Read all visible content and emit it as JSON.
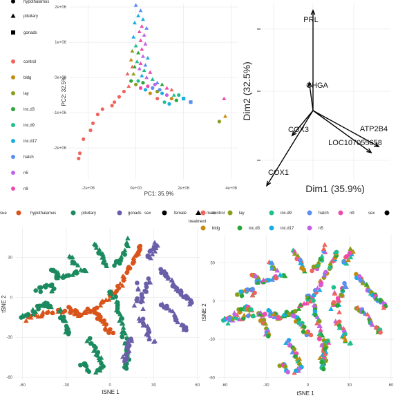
{
  "colors": {
    "hypothalamus": "#d9541a",
    "pituitary": "#1b8a5f",
    "gonads": "#6a5ea9",
    "control": "#f0645e",
    "bldg": "#c58a12",
    "lay": "#8a9c1a",
    "inc.d3": "#2ca53a",
    "inc.d9": "#1fbf8e",
    "inc.d17": "#19aee0",
    "hatch": "#5a8ff0",
    "n5": "#c163e6",
    "n9": "#ef4aae",
    "grid": "#ebebeb"
  },
  "legend_pca": {
    "shape_items": [
      "hypothalamus",
      "pituitary",
      "gonads"
    ],
    "color_items": [
      "control",
      "bldg",
      "lay",
      "inc.d3",
      "inc.d9",
      "inc.d17",
      "hatch",
      "n5",
      "n9"
    ]
  },
  "legend_mid": {
    "tissue_title": "sue",
    "tissue_items": [
      "hypothalamus",
      "pituitary",
      "gonads"
    ],
    "sex_title": "sex",
    "sex_items": [
      "female",
      "male"
    ],
    "treatment_title": "treatment",
    "treatment_row1": [
      "control",
      "lay",
      "inc.d9",
      "hatch",
      "n9"
    ],
    "treatment_row2": [
      "bldg",
      "inc.d3",
      "inc.d17",
      "n5"
    ],
    "sex_title2": "sex"
  },
  "chart_data": [
    {
      "type": "scatter",
      "name_shown": "",
      "xlabel": "PC1: 35.9%",
      "ylabel": "PC2: 32.5%",
      "xlim": [
        -2800000,
        4300000
      ],
      "ylim": [
        -2900000,
        2100000
      ],
      "xticks": [
        -2000000,
        0,
        2000000,
        4000000
      ],
      "xtick_labels": [
        "-2e+06",
        "0e+00",
        "2e+06",
        "4e+06"
      ],
      "yticks": [
        -2000000,
        -1000000,
        0,
        1000000,
        2000000
      ],
      "ytick_labels": [
        "-2e+06",
        "-1e+06",
        "0e+00",
        "1e+06",
        "2e+06"
      ],
      "points": [
        {
          "x": -2400000,
          "y": -2300000,
          "shape": "circle",
          "color": "control"
        },
        {
          "x": -2350000,
          "y": -2150000,
          "shape": "circle",
          "color": "control"
        },
        {
          "x": -2200000,
          "y": -1750000,
          "shape": "circle",
          "color": "control"
        },
        {
          "x": -1900000,
          "y": -1500000,
          "shape": "circle",
          "color": "control"
        },
        {
          "x": -1800000,
          "y": -1300000,
          "shape": "circle",
          "color": "control"
        },
        {
          "x": -1600000,
          "y": -1050000,
          "shape": "circle",
          "color": "control"
        },
        {
          "x": -1400000,
          "y": -900000,
          "shape": "circle",
          "color": "control"
        },
        {
          "x": -1000000,
          "y": -800000,
          "shape": "circle",
          "color": "control"
        },
        {
          "x": -900000,
          "y": -700000,
          "shape": "circle",
          "color": "control"
        },
        {
          "x": -700000,
          "y": -550000,
          "shape": "circle",
          "color": "control"
        },
        {
          "x": -500000,
          "y": -400000,
          "shape": "circle",
          "color": "control"
        },
        {
          "x": -300000,
          "y": -250000,
          "shape": "triangle",
          "color": "control"
        },
        {
          "x": -150000,
          "y": 300000,
          "shape": "triangle",
          "color": "control"
        },
        {
          "x": -350000,
          "y": 100000,
          "shape": "triangle",
          "color": "control"
        },
        {
          "x": 0,
          "y": 2050000,
          "shape": "triangle",
          "color": "hatch"
        },
        {
          "x": 200000,
          "y": 1900000,
          "shape": "triangle",
          "color": "hatch"
        },
        {
          "x": 100000,
          "y": 1750000,
          "shape": "triangle",
          "color": "inc.d17"
        },
        {
          "x": 300000,
          "y": 1650000,
          "shape": "triangle",
          "color": "inc.d17"
        },
        {
          "x": -50000,
          "y": 1550000,
          "shape": "triangle",
          "color": "inc.d17"
        },
        {
          "x": 250000,
          "y": 1450000,
          "shape": "triangle",
          "color": "n9"
        },
        {
          "x": 450000,
          "y": 1400000,
          "shape": "triangle",
          "color": "hatch"
        },
        {
          "x": 150000,
          "y": 1300000,
          "shape": "triangle",
          "color": "n9"
        },
        {
          "x": 350000,
          "y": 1200000,
          "shape": "triangle",
          "color": "n5"
        },
        {
          "x": -100000,
          "y": 1150000,
          "shape": "triangle",
          "color": "inc.d17"
        },
        {
          "x": 200000,
          "y": 1050000,
          "shape": "triangle",
          "color": "n9"
        },
        {
          "x": 400000,
          "y": 950000,
          "shape": "triangle",
          "color": "n5"
        },
        {
          "x": 0,
          "y": 900000,
          "shape": "triangle",
          "color": "inc.d9"
        },
        {
          "x": 250000,
          "y": 800000,
          "shape": "triangle",
          "color": "n9"
        },
        {
          "x": -150000,
          "y": 750000,
          "shape": "triangle",
          "color": "lay"
        },
        {
          "x": 100000,
          "y": 700000,
          "shape": "triangle",
          "color": "inc.d3"
        },
        {
          "x": 300000,
          "y": 600000,
          "shape": "triangle",
          "color": "n5"
        },
        {
          "x": 500000,
          "y": 550000,
          "shape": "triangle",
          "color": "inc.d17"
        },
        {
          "x": -200000,
          "y": 500000,
          "shape": "triangle",
          "color": "bldg"
        },
        {
          "x": 50000,
          "y": 450000,
          "shape": "triangle",
          "color": "inc.d9"
        },
        {
          "x": 200000,
          "y": 400000,
          "shape": "triangle",
          "color": "n9"
        },
        {
          "x": 400000,
          "y": 350000,
          "shape": "triangle",
          "color": "hatch"
        },
        {
          "x": -50000,
          "y": 300000,
          "shape": "triangle",
          "color": "inc.d3"
        },
        {
          "x": 150000,
          "y": 250000,
          "shape": "triangle",
          "color": "n5"
        },
        {
          "x": 350000,
          "y": 200000,
          "shape": "triangle",
          "color": "inc.d9"
        },
        {
          "x": 600000,
          "y": 150000,
          "shape": "triangle",
          "color": "n9"
        },
        {
          "x": -100000,
          "y": 100000,
          "shape": "triangle",
          "color": "lay"
        },
        {
          "x": 250000,
          "y": 50000,
          "shape": "triangle",
          "color": "inc.d17"
        },
        {
          "x": 450000,
          "y": 0,
          "shape": "triangle",
          "color": "n5"
        },
        {
          "x": 700000,
          "y": -50000,
          "shape": "triangle",
          "color": "inc.d9"
        },
        {
          "x": 900000,
          "y": -150000,
          "shape": "triangle",
          "color": "hatch"
        },
        {
          "x": 1100000,
          "y": -200000,
          "shape": "triangle",
          "color": "inc.d3"
        },
        {
          "x": 1300000,
          "y": -300000,
          "shape": "triangle",
          "color": "n9"
        },
        {
          "x": 1500000,
          "y": -350000,
          "shape": "triangle",
          "color": "control"
        },
        {
          "x": 1600000,
          "y": -500000,
          "shape": "triangle",
          "color": "inc.d9"
        },
        {
          "x": 100000,
          "y": -100000,
          "shape": "circle",
          "color": "inc.d9"
        },
        {
          "x": 300000,
          "y": -150000,
          "shape": "circle",
          "color": "inc.d3"
        },
        {
          "x": 500000,
          "y": -250000,
          "shape": "circle",
          "color": "n9"
        },
        {
          "x": 700000,
          "y": -300000,
          "shape": "circle",
          "color": "hatch"
        },
        {
          "x": 900000,
          "y": -400000,
          "shape": "circle",
          "color": "lay"
        },
        {
          "x": 1100000,
          "y": -450000,
          "shape": "circle",
          "color": "inc.d17"
        },
        {
          "x": 1300000,
          "y": -500000,
          "shape": "circle",
          "color": "n5"
        },
        {
          "x": 1500000,
          "y": -600000,
          "shape": "circle",
          "color": "bldg"
        },
        {
          "x": 1700000,
          "y": -650000,
          "shape": "circle",
          "color": "inc.d3"
        },
        {
          "x": 900000,
          "y": -600000,
          "shape": "circle",
          "color": "control"
        },
        {
          "x": 1200000,
          "y": -700000,
          "shape": "circle",
          "color": "inc.d9"
        },
        {
          "x": 600000,
          "y": -450000,
          "shape": "circle",
          "color": "bldg"
        },
        {
          "x": 400000,
          "y": -350000,
          "shape": "circle",
          "color": "inc.d17"
        },
        {
          "x": 200000,
          "y": -300000,
          "shape": "circle",
          "color": "n9"
        },
        {
          "x": 0,
          "y": -200000,
          "shape": "circle",
          "color": "lay"
        },
        {
          "x": -200000,
          "y": -100000,
          "shape": "circle",
          "color": "inc.d3"
        },
        {
          "x": 800000,
          "y": -200000,
          "shape": "circle",
          "color": "n5"
        },
        {
          "x": 1000000,
          "y": -350000,
          "shape": "circle",
          "color": "hatch"
        },
        {
          "x": 1400000,
          "y": -750000,
          "shape": "circle",
          "color": "inc.d17"
        },
        {
          "x": 2300000,
          "y": -700000,
          "shape": "square",
          "color": "hatch"
        },
        {
          "x": 3500000,
          "y": -1250000,
          "shape": "circle",
          "color": "lay"
        },
        {
          "x": 3750000,
          "y": -1100000,
          "shape": "triangle",
          "color": "bldg"
        },
        {
          "x": 3700000,
          "y": -600000,
          "shape": "triangle",
          "color": "n9"
        },
        {
          "x": 1800000,
          "y": -500000,
          "shape": "circle",
          "color": "inc.d9"
        },
        {
          "x": 2000000,
          "y": -600000,
          "shape": "square",
          "color": "inc.d17"
        }
      ]
    },
    {
      "type": "scatter",
      "xlabel": "Dim1 (35.9%)",
      "ylabel": "Dim2 (32.5%)",
      "variables": [
        {
          "label": "PRL",
          "x": 0.0,
          "y": 1.0
        },
        {
          "label": "CHGA",
          "x": -0.05,
          "y": 0.28
        },
        {
          "label": "COX3",
          "x": -0.28,
          "y": -0.25
        },
        {
          "label": "ATP2B4",
          "x": 0.88,
          "y": -0.36
        },
        {
          "label": "LOC107055658",
          "x": 0.78,
          "y": -0.42
        },
        {
          "label": "COX1",
          "x": -0.62,
          "y": -0.75
        }
      ],
      "origin": [
        0,
        0
      ]
    },
    {
      "type": "scatter",
      "xlabel": "tSNE 1",
      "ylabel": "tSNE 2",
      "xlim": [
        -65,
        62
      ],
      "ylim": [
        -62,
        52
      ],
      "xticks": [
        -60,
        -30,
        0,
        30,
        60
      ],
      "yticks": [
        -60,
        -30,
        0,
        30
      ],
      "points": []
    },
    {
      "type": "scatter",
      "xlabel": "tSNE 1",
      "ylabel": "tSNE 2",
      "xlim": [
        -65,
        62
      ],
      "ylim": [
        -62,
        52
      ],
      "xticks": [
        -60,
        -30,
        0,
        30,
        60
      ],
      "yticks": [
        -60,
        -30,
        0,
        30
      ],
      "points": []
    }
  ]
}
